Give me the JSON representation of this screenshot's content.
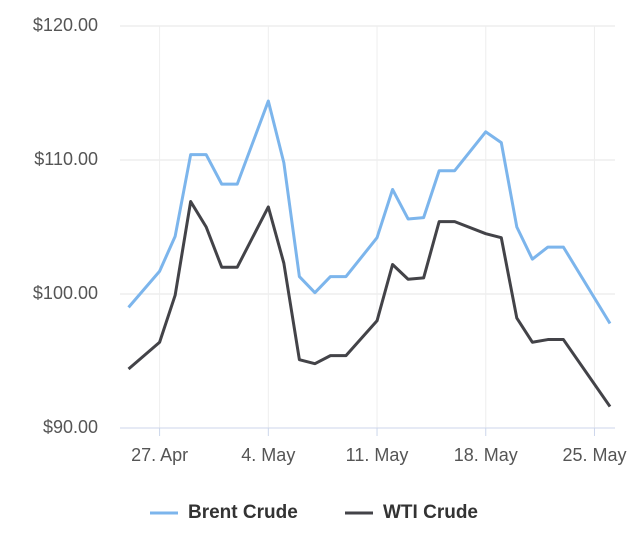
{
  "chart_data": {
    "type": "line",
    "x": [
      "--04-25",
      "--04-27",
      "--04-28",
      "--04-29",
      "--04-30",
      "--05-01",
      "--05-02",
      "--05-04",
      "--05-05",
      "--05-06",
      "--05-07",
      "--05-08",
      "--05-09",
      "--05-11",
      "--05-12",
      "--05-13",
      "--05-14",
      "--05-15",
      "--05-16",
      "--05-18",
      "--05-19",
      "--05-20",
      "--05-21",
      "--05-22",
      "--05-23",
      "--05-26"
    ],
    "series": [
      {
        "name": "Brent Crude",
        "color": "#7cb5ec",
        "values": [
          99.0,
          101.7,
          104.3,
          110.4,
          110.4,
          108.2,
          108.2,
          114.4,
          109.8,
          101.3,
          100.1,
          101.3,
          101.3,
          104.2,
          107.8,
          105.6,
          105.7,
          109.2,
          109.2,
          112.1,
          111.3,
          105.0,
          102.6,
          103.5,
          103.5,
          97.8
        ]
      },
      {
        "name": "WTI Crude",
        "color": "#434348",
        "values": [
          94.4,
          96.4,
          99.9,
          106.9,
          105.0,
          102.0,
          102.0,
          106.5,
          102.3,
          95.1,
          94.8,
          95.4,
          95.4,
          98.0,
          102.2,
          101.1,
          101.2,
          105.4,
          105.4,
          104.5,
          104.2,
          98.2,
          96.4,
          96.6,
          96.6,
          91.6
        ]
      }
    ],
    "xlim": [
      "--04-24",
      "--05-26"
    ],
    "xticks": [
      {
        "value": "--04-27",
        "label": "27. Apr"
      },
      {
        "value": "--05-04",
        "label": "4. May"
      },
      {
        "value": "--05-11",
        "label": "11. May"
      },
      {
        "value": "--05-18",
        "label": "18. May"
      },
      {
        "value": "--05-25",
        "label": "25. May"
      }
    ],
    "ylim": [
      90,
      120
    ],
    "yticks": [
      {
        "value": 90,
        "label": "$90.00"
      },
      {
        "value": 100,
        "label": "$100.00"
      },
      {
        "value": 110,
        "label": "$110.00"
      },
      {
        "value": 120,
        "label": "$120.00"
      }
    ],
    "grid": true,
    "legend": "bottom"
  }
}
